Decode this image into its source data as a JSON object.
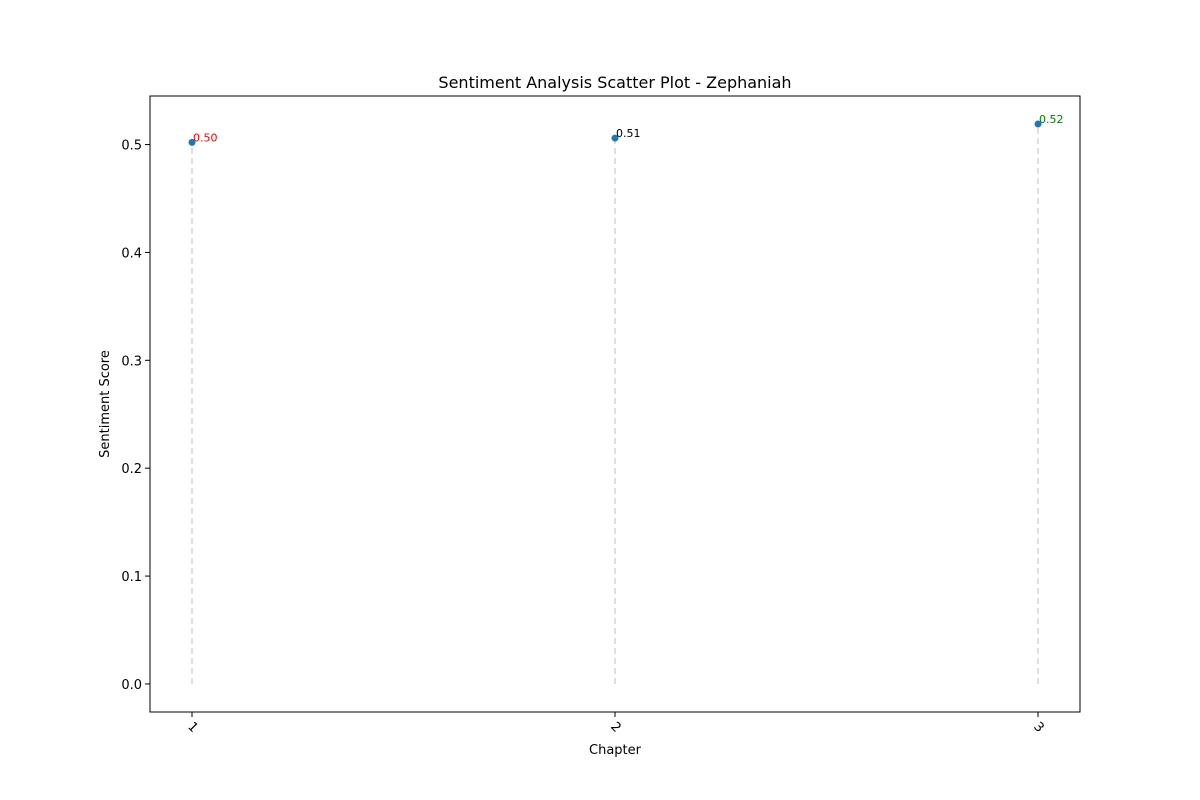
{
  "chart_data": {
    "type": "scatter",
    "title": "Sentiment Analysis Scatter Plot - Zephaniah",
    "xlabel": "Chapter",
    "ylabel": "Sentiment Score",
    "categories": [
      "1",
      "2",
      "3"
    ],
    "values": [
      0.502,
      0.506,
      0.519
    ],
    "labels": [
      "0.50",
      "0.51",
      "0.52"
    ],
    "label_colors": [
      "#ff0000",
      "#000000",
      "#008000"
    ],
    "ylim": [
      -0.026,
      0.545
    ],
    "yticks": [
      "0.0",
      "0.1",
      "0.2",
      "0.3",
      "0.4",
      "0.5"
    ],
    "ytick_values": [
      0.0,
      0.1,
      0.2,
      0.3,
      0.4,
      0.5
    ],
    "grid": false,
    "stems": "dashed lines from 0 to each point",
    "colors": {
      "marker": "#1f77b4",
      "stem": "#d3d3d3",
      "axis": "#000000"
    }
  }
}
